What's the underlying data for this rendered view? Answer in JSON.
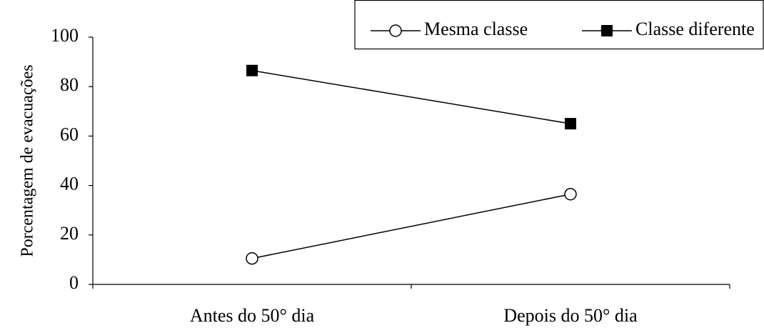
{
  "chart_data": {
    "type": "line",
    "y_label": "Porcentagem de evacuações",
    "categories": [
      "Antes do 50° dia",
      "Depois do 50° dia"
    ],
    "series": [
      {
        "name": "Mesma classe",
        "color": "#000000",
        "marker": "open-circle",
        "values": [
          10.5,
          36.5
        ]
      },
      {
        "name": "Classe diferente",
        "color": "#000000",
        "marker": "filled-square",
        "values": [
          86.5,
          65
        ]
      }
    ],
    "ylim": [
      0,
      100
    ],
    "yticks": [
      0,
      20,
      40,
      60,
      80,
      100
    ],
    "grid": false,
    "legend": "top-right"
  }
}
